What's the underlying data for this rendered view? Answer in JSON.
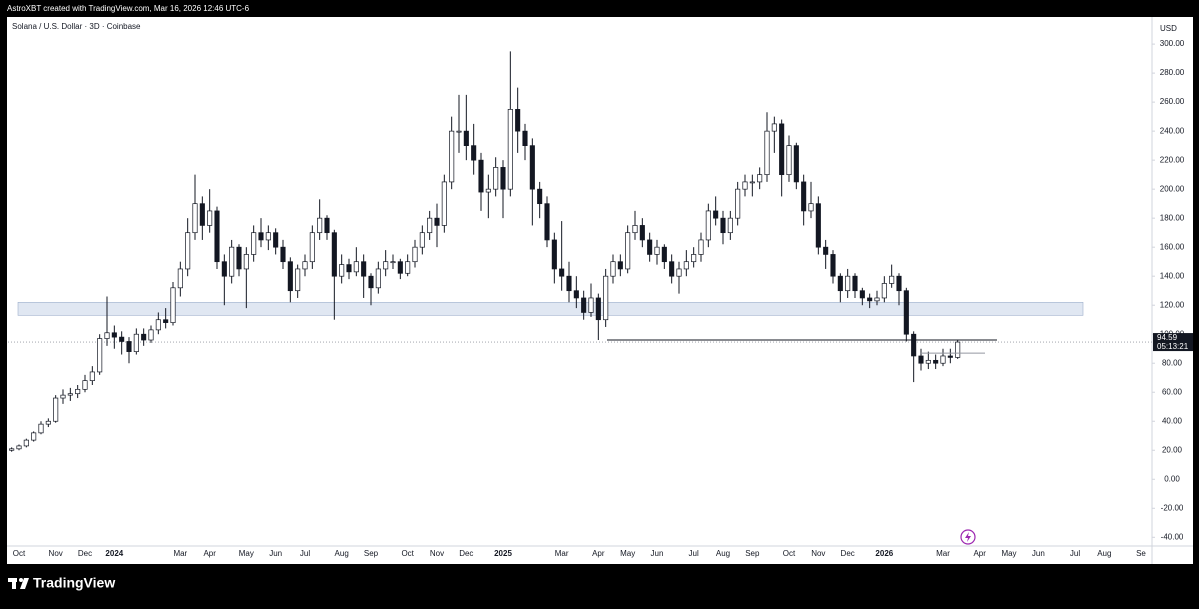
{
  "header": "AstroXBT created with TradingView.com, Mar 16, 2026 12:46 UTC-6",
  "brand": "TradingView",
  "chart_data": {
    "type": "candlestick",
    "title": "Solana / U.S. Dollar · 3D · Coinbase",
    "currency": "USD",
    "up_color": "#ffffff",
    "down_color": "#131722",
    "wick_color": "#131722",
    "ylim": [
      -46,
      318
    ],
    "yticks": [
      {
        "value": 300,
        "label": "300.00"
      },
      {
        "value": 280,
        "label": "280.00"
      },
      {
        "value": 260,
        "label": "260.00"
      },
      {
        "value": 240,
        "label": "240.00"
      },
      {
        "value": 220,
        "label": "220.00"
      },
      {
        "value": 200,
        "label": "200.00"
      },
      {
        "value": 180,
        "label": "180.00"
      },
      {
        "value": 160,
        "label": "160.00"
      },
      {
        "value": 140,
        "label": "140.00"
      },
      {
        "value": 120,
        "label": "120.00"
      },
      {
        "value": 100,
        "label": "100.00"
      },
      {
        "value": 80,
        "label": "80.00"
      },
      {
        "value": 60,
        "label": "60.00"
      },
      {
        "value": 40,
        "label": "40.00"
      },
      {
        "value": 20,
        "label": "20.00"
      },
      {
        "value": 0,
        "label": "0.00"
      },
      {
        "value": -20,
        "label": "-20.00"
      },
      {
        "value": -40,
        "label": "-40.00"
      }
    ],
    "last_price": 94.59,
    "countdown": "05:13:21",
    "zone": [
      113,
      122
    ],
    "levels": [
      96,
      87
    ],
    "categories": [
      null,
      "Oct",
      null,
      null,
      null,
      null,
      "Nov",
      null,
      null,
      null,
      "Dec",
      null,
      null,
      null,
      "2024",
      null,
      null,
      null,
      null,
      null,
      null,
      null,
      null,
      "Mar",
      null,
      null,
      null,
      "Apr",
      null,
      null,
      null,
      null,
      "May",
      null,
      null,
      null,
      "Jun",
      null,
      null,
      null,
      "Jul",
      null,
      null,
      null,
      null,
      "Aug",
      null,
      null,
      null,
      "Sep",
      null,
      null,
      null,
      null,
      "Oct",
      null,
      null,
      null,
      "Nov",
      null,
      null,
      null,
      "Dec",
      null,
      null,
      null,
      null,
      "2025",
      null,
      null,
      null,
      null,
      null,
      null,
      null,
      "Mar",
      null,
      null,
      null,
      null,
      "Apr",
      null,
      null,
      null,
      "May",
      null,
      null,
      null,
      "Jun",
      null,
      null,
      null,
      null,
      "Jul",
      null,
      null,
      null,
      "Aug",
      null,
      null,
      null,
      "Sep",
      null,
      null,
      null,
      null,
      "Oct",
      null,
      null,
      null,
      "Nov",
      null,
      null,
      null,
      "Dec",
      null,
      null,
      null,
      null,
      "2026",
      null,
      null,
      null,
      null,
      null,
      null,
      null,
      "Mar",
      null,
      null,
      null,
      null,
      "Apr",
      null,
      null,
      null,
      "May",
      null,
      null,
      null,
      "Jun",
      null,
      null,
      null,
      null,
      "Jul",
      null,
      null,
      null,
      "Aug",
      null,
      null,
      null,
      null,
      "Se",
      null
    ],
    "ohlc": [
      [
        20,
        22,
        19,
        21
      ],
      [
        21,
        24,
        20,
        23
      ],
      [
        23,
        28,
        22,
        27
      ],
      [
        27,
        33,
        26,
        32
      ],
      [
        32,
        40,
        31,
        38
      ],
      [
        38,
        42,
        36,
        40
      ],
      [
        40,
        58,
        39,
        56
      ],
      [
        56,
        62,
        52,
        58
      ],
      [
        58,
        63,
        54,
        59
      ],
      [
        59,
        65,
        56,
        62
      ],
      [
        62,
        72,
        60,
        68
      ],
      [
        68,
        78,
        65,
        74
      ],
      [
        74,
        100,
        72,
        97
      ],
      [
        97,
        126,
        92,
        101
      ],
      [
        101,
        106,
        90,
        98
      ],
      [
        98,
        102,
        86,
        95
      ],
      [
        95,
        98,
        80,
        88
      ],
      [
        88,
        104,
        86,
        100
      ],
      [
        100,
        104,
        92,
        96
      ],
      [
        96,
        106,
        94,
        103
      ],
      [
        103,
        115,
        100,
        110
      ],
      [
        110,
        118,
        104,
        108
      ],
      [
        108,
        136,
        106,
        132
      ],
      [
        132,
        150,
        126,
        145
      ],
      [
        145,
        180,
        140,
        170
      ],
      [
        170,
        210,
        165,
        190
      ],
      [
        190,
        195,
        165,
        175
      ],
      [
        175,
        200,
        170,
        185
      ],
      [
        185,
        188,
        145,
        150
      ],
      [
        150,
        155,
        120,
        140
      ],
      [
        140,
        165,
        135,
        160
      ],
      [
        160,
        162,
        140,
        145
      ],
      [
        145,
        160,
        118,
        155
      ],
      [
        155,
        175,
        150,
        170
      ],
      [
        170,
        180,
        160,
        165
      ],
      [
        165,
        175,
        158,
        170
      ],
      [
        170,
        173,
        155,
        160
      ],
      [
        160,
        165,
        145,
        150
      ],
      [
        150,
        153,
        122,
        130
      ],
      [
        130,
        148,
        125,
        145
      ],
      [
        145,
        155,
        140,
        150
      ],
      [
        150,
        175,
        145,
        170
      ],
      [
        170,
        193,
        165,
        180
      ],
      [
        180,
        182,
        165,
        170
      ],
      [
        170,
        172,
        110,
        140
      ],
      [
        140,
        155,
        135,
        148
      ],
      [
        148,
        152,
        138,
        143
      ],
      [
        143,
        160,
        140,
        150
      ],
      [
        150,
        155,
        125,
        140
      ],
      [
        140,
        142,
        120,
        132
      ],
      [
        132,
        150,
        128,
        145
      ],
      [
        145,
        158,
        140,
        150
      ],
      [
        150,
        155,
        145,
        150
      ],
      [
        150,
        152,
        138,
        142
      ],
      [
        142,
        155,
        140,
        150
      ],
      [
        150,
        165,
        146,
        160
      ],
      [
        160,
        175,
        155,
        170
      ],
      [
        170,
        185,
        165,
        180
      ],
      [
        180,
        190,
        160,
        175
      ],
      [
        175,
        210,
        170,
        205
      ],
      [
        205,
        250,
        200,
        240
      ],
      [
        240,
        265,
        225,
        240
      ],
      [
        240,
        265,
        220,
        230
      ],
      [
        230,
        245,
        210,
        220
      ],
      [
        220,
        225,
        185,
        198
      ],
      [
        198,
        210,
        180,
        200
      ],
      [
        200,
        222,
        195,
        215
      ],
      [
        215,
        220,
        180,
        200
      ],
      [
        200,
        295,
        195,
        255
      ],
      [
        255,
        270,
        225,
        240
      ],
      [
        240,
        245,
        220,
        230
      ],
      [
        230,
        235,
        175,
        200
      ],
      [
        200,
        205,
        180,
        190
      ],
      [
        190,
        195,
        160,
        165
      ],
      [
        165,
        170,
        135,
        145
      ],
      [
        145,
        178,
        130,
        140
      ],
      [
        140,
        150,
        122,
        130
      ],
      [
        130,
        140,
        118,
        125
      ],
      [
        125,
        130,
        110,
        115
      ],
      [
        115,
        135,
        112,
        125
      ],
      [
        125,
        128,
        96,
        110
      ],
      [
        110,
        145,
        105,
        140
      ],
      [
        140,
        155,
        135,
        150
      ],
      [
        150,
        155,
        140,
        145
      ],
      [
        145,
        175,
        142,
        170
      ],
      [
        170,
        185,
        165,
        175
      ],
      [
        175,
        180,
        160,
        165
      ],
      [
        165,
        170,
        150,
        155
      ],
      [
        155,
        165,
        148,
        160
      ],
      [
        160,
        162,
        145,
        150
      ],
      [
        150,
        155,
        135,
        140
      ],
      [
        140,
        150,
        128,
        145
      ],
      [
        145,
        158,
        140,
        150
      ],
      [
        150,
        160,
        146,
        155
      ],
      [
        155,
        170,
        150,
        165
      ],
      [
        165,
        190,
        160,
        185
      ],
      [
        185,
        195,
        175,
        180
      ],
      [
        180,
        185,
        162,
        170
      ],
      [
        170,
        185,
        165,
        180
      ],
      [
        180,
        205,
        175,
        200
      ],
      [
        200,
        210,
        195,
        205
      ],
      [
        205,
        210,
        195,
        205
      ],
      [
        205,
        215,
        200,
        210
      ],
      [
        210,
        253,
        205,
        240
      ],
      [
        240,
        250,
        225,
        245
      ],
      [
        245,
        248,
        195,
        210
      ],
      [
        210,
        237,
        205,
        230
      ],
      [
        230,
        232,
        200,
        205
      ],
      [
        205,
        210,
        175,
        185
      ],
      [
        185,
        205,
        180,
        190
      ],
      [
        190,
        195,
        155,
        160
      ],
      [
        160,
        165,
        145,
        155
      ],
      [
        155,
        158,
        135,
        140
      ],
      [
        140,
        142,
        122,
        130
      ],
      [
        130,
        145,
        125,
        140
      ],
      [
        140,
        142,
        125,
        130
      ],
      [
        130,
        132,
        120,
        125
      ],
      [
        125,
        128,
        118,
        123
      ],
      [
        123,
        130,
        120,
        125
      ],
      [
        125,
        140,
        122,
        135
      ],
      [
        135,
        148,
        132,
        140
      ],
      [
        140,
        142,
        120,
        130
      ],
      [
        130,
        132,
        95,
        100
      ],
      [
        100,
        102,
        67,
        85
      ],
      [
        85,
        90,
        75,
        80
      ],
      [
        80,
        88,
        76,
        82
      ],
      [
        82,
        86,
        76,
        80
      ],
      [
        80,
        90,
        78,
        85
      ],
      [
        85,
        90,
        80,
        84
      ],
      [
        84,
        96,
        83,
        94.59
      ],
      null,
      null,
      null,
      null,
      null,
      null,
      null,
      null,
      null,
      null,
      null,
      null,
      null,
      null,
      null,
      null,
      null,
      null,
      null,
      null,
      null,
      null,
      null,
      null,
      null,
      null
    ]
  }
}
